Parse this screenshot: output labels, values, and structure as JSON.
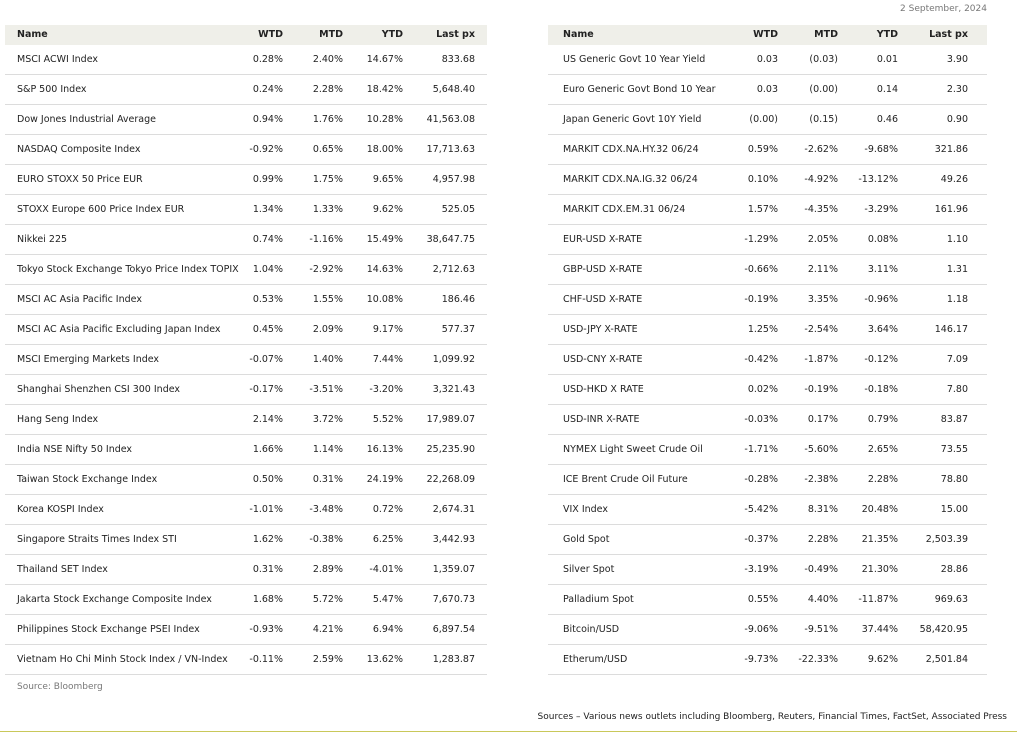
{
  "date": "2 September, 2024",
  "left_table": {
    "columns": [
      "Name",
      "WTD",
      "MTD",
      "YTD",
      "Last px"
    ],
    "rows": [
      [
        "MSCI ACWI Index",
        "0.28%",
        "2.40%",
        "14.67%",
        "833.68"
      ],
      [
        "S&P 500 Index",
        "0.24%",
        "2.28%",
        "18.42%",
        "5,648.40"
      ],
      [
        "Dow Jones Industrial Average",
        "0.94%",
        "1.76%",
        "10.28%",
        "41,563.08"
      ],
      [
        "NASDAQ Composite Index",
        "-0.92%",
        "0.65%",
        "18.00%",
        "17,713.63"
      ],
      [
        "EURO STOXX 50 Price EUR",
        "0.99%",
        "1.75%",
        "9.65%",
        "4,957.98"
      ],
      [
        "STOXX Europe 600 Price Index EUR",
        "1.34%",
        "1.33%",
        "9.62%",
        "525.05"
      ],
      [
        "Nikkei 225",
        "0.74%",
        "-1.16%",
        "15.49%",
        "38,647.75"
      ],
      [
        "Tokyo Stock Exchange Tokyo Price Index TOPIX",
        "1.04%",
        "-2.92%",
        "14.63%",
        "2,712.63"
      ],
      [
        "MSCI AC Asia Pacific Index",
        "0.53%",
        "1.55%",
        "10.08%",
        "186.46"
      ],
      [
        "MSCI AC Asia Pacific Excluding Japan Index",
        "0.45%",
        "2.09%",
        "9.17%",
        "577.37"
      ],
      [
        "MSCI Emerging Markets Index",
        "-0.07%",
        "1.40%",
        "7.44%",
        "1,099.92"
      ],
      [
        "Shanghai Shenzhen CSI 300 Index",
        "-0.17%",
        "-3.51%",
        "-3.20%",
        "3,321.43"
      ],
      [
        "Hang Seng Index",
        "2.14%",
        "3.72%",
        "5.52%",
        "17,989.07"
      ],
      [
        "India NSE Nifty 50 Index",
        "1.66%",
        "1.14%",
        "16.13%",
        "25,235.90"
      ],
      [
        "Taiwan Stock Exchange Index",
        "0.50%",
        "0.31%",
        "24.19%",
        "22,268.09"
      ],
      [
        "Korea KOSPI Index",
        "-1.01%",
        "-3.48%",
        "0.72%",
        "2,674.31"
      ],
      [
        "Singapore Straits Times Index STI",
        "1.62%",
        "-0.38%",
        "6.25%",
        "3,442.93"
      ],
      [
        "Thailand SET Index",
        "0.31%",
        "2.89%",
        "-4.01%",
        "1,359.07"
      ],
      [
        "Jakarta Stock Exchange Composite Index",
        "1.68%",
        "5.72%",
        "5.47%",
        "7,670.73"
      ],
      [
        "Philippines Stock Exchange PSEI Index",
        "-0.93%",
        "4.21%",
        "6.94%",
        "6,897.54"
      ],
      [
        "Vietnam Ho Chi Minh Stock Index / VN-Index",
        "-0.11%",
        "2.59%",
        "13.62%",
        "1,283.87"
      ]
    ]
  },
  "right_table": {
    "columns": [
      "Name",
      "WTD",
      "MTD",
      "YTD",
      "Last px"
    ],
    "rows": [
      [
        "US Generic Govt 10 Year Yield",
        "0.03",
        "(0.03)",
        "0.01",
        "3.90"
      ],
      [
        "Euro Generic Govt Bond 10 Year",
        "0.03",
        "(0.00)",
        "0.14",
        "2.30"
      ],
      [
        "Japan Generic Govt 10Y Yield",
        "(0.00)",
        "(0.15)",
        "0.46",
        "0.90"
      ],
      [
        "MARKIT CDX.NA.HY.32 06/24",
        "0.59%",
        "-2.62%",
        "-9.68%",
        "321.86"
      ],
      [
        "MARKIT CDX.NA.IG.32 06/24",
        "0.10%",
        "-4.92%",
        "-13.12%",
        "49.26"
      ],
      [
        "MARKIT CDX.EM.31 06/24",
        "1.57%",
        "-4.35%",
        "-3.29%",
        "161.96"
      ],
      [
        "EUR-USD X-RATE",
        "-1.29%",
        "2.05%",
        "0.08%",
        "1.10"
      ],
      [
        "GBP-USD X-RATE",
        "-0.66%",
        "2.11%",
        "3.11%",
        "1.31"
      ],
      [
        "CHF-USD X-RATE",
        "-0.19%",
        "3.35%",
        "-0.96%",
        "1.18"
      ],
      [
        "USD-JPY X-RATE",
        "1.25%",
        "-2.54%",
        "3.64%",
        "146.17"
      ],
      [
        "USD-CNY X-RATE",
        "-0.42%",
        "-1.87%",
        "-0.12%",
        "7.09"
      ],
      [
        "USD-HKD X RATE",
        "0.02%",
        "-0.19%",
        "-0.18%",
        "7.80"
      ],
      [
        "USD-INR X-RATE",
        "-0.03%",
        "0.17%",
        "0.79%",
        "83.87"
      ],
      [
        "NYMEX Light Sweet Crude Oil",
        "-1.71%",
        "-5.60%",
        "2.65%",
        "73.55"
      ],
      [
        "ICE Brent Crude Oil Future",
        "-0.28%",
        "-2.38%",
        "2.28%",
        "78.80"
      ],
      [
        "VIX Index",
        "-5.42%",
        "8.31%",
        "20.48%",
        "15.00"
      ],
      [
        "Gold Spot",
        "-0.37%",
        "2.28%",
        "21.35%",
        "2,503.39"
      ],
      [
        "Silver Spot",
        "-3.19%",
        "-0.49%",
        "21.30%",
        "28.86"
      ],
      [
        "Palladium Spot",
        "0.55%",
        "4.40%",
        "-11.87%",
        "969.63"
      ],
      [
        "Bitcoin/USD",
        "-9.06%",
        "-9.51%",
        "37.44%",
        "58,420.95"
      ],
      [
        "Etherum/USD",
        "-9.73%",
        "-22.33%",
        "9.62%",
        "2,501.84"
      ]
    ]
  },
  "source": "Source: Bloomberg",
  "footer": "Sources – Various news outlets including Bloomberg, Reuters, Financial Times, FactSet, Associated Press"
}
